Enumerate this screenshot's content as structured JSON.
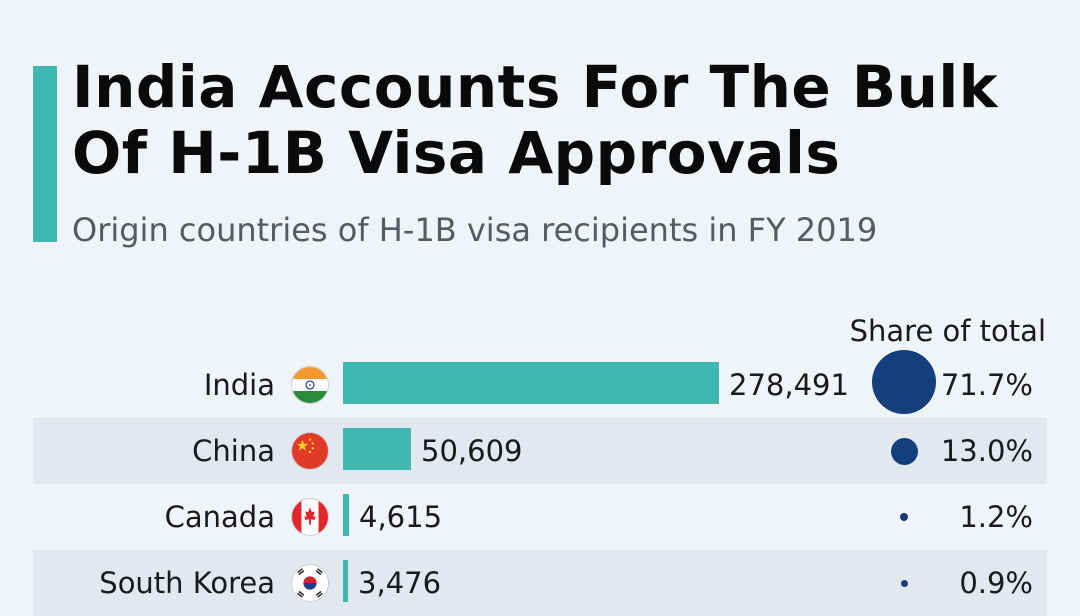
{
  "header": {
    "title": "India Accounts For The Bulk Of H-1B Visa Approvals",
    "subtitle": "Origin countries of H-1B visa recipients in FY 2019",
    "accent_color": "#3fb8b2"
  },
  "chart_data": {
    "type": "bar",
    "orientation": "horizontal",
    "title": "India Accounts For The Bulk Of H-1B Visa Approvals",
    "subtitle": "Origin countries of H-1B visa recipients in FY 2019",
    "share_header": "Share of total",
    "categories": [
      "India",
      "China",
      "Canada",
      "South Korea"
    ],
    "values": [
      278491,
      50609,
      4615,
      3476
    ],
    "value_labels": [
      "278,491",
      "50,609",
      "4,615",
      "3,476"
    ],
    "share": [
      71.7,
      13.0,
      1.2,
      0.9
    ],
    "share_labels": [
      "71.7%",
      "13.0%",
      "1.2%",
      "0.9%"
    ],
    "flags": [
      "india-flag-icon",
      "china-flag-icon",
      "canada-flag-icon",
      "south-korea-flag-icon"
    ],
    "bar_color": "#3fb8b2",
    "bubble_color": "#133f7c",
    "grid": false,
    "legend": "none"
  }
}
